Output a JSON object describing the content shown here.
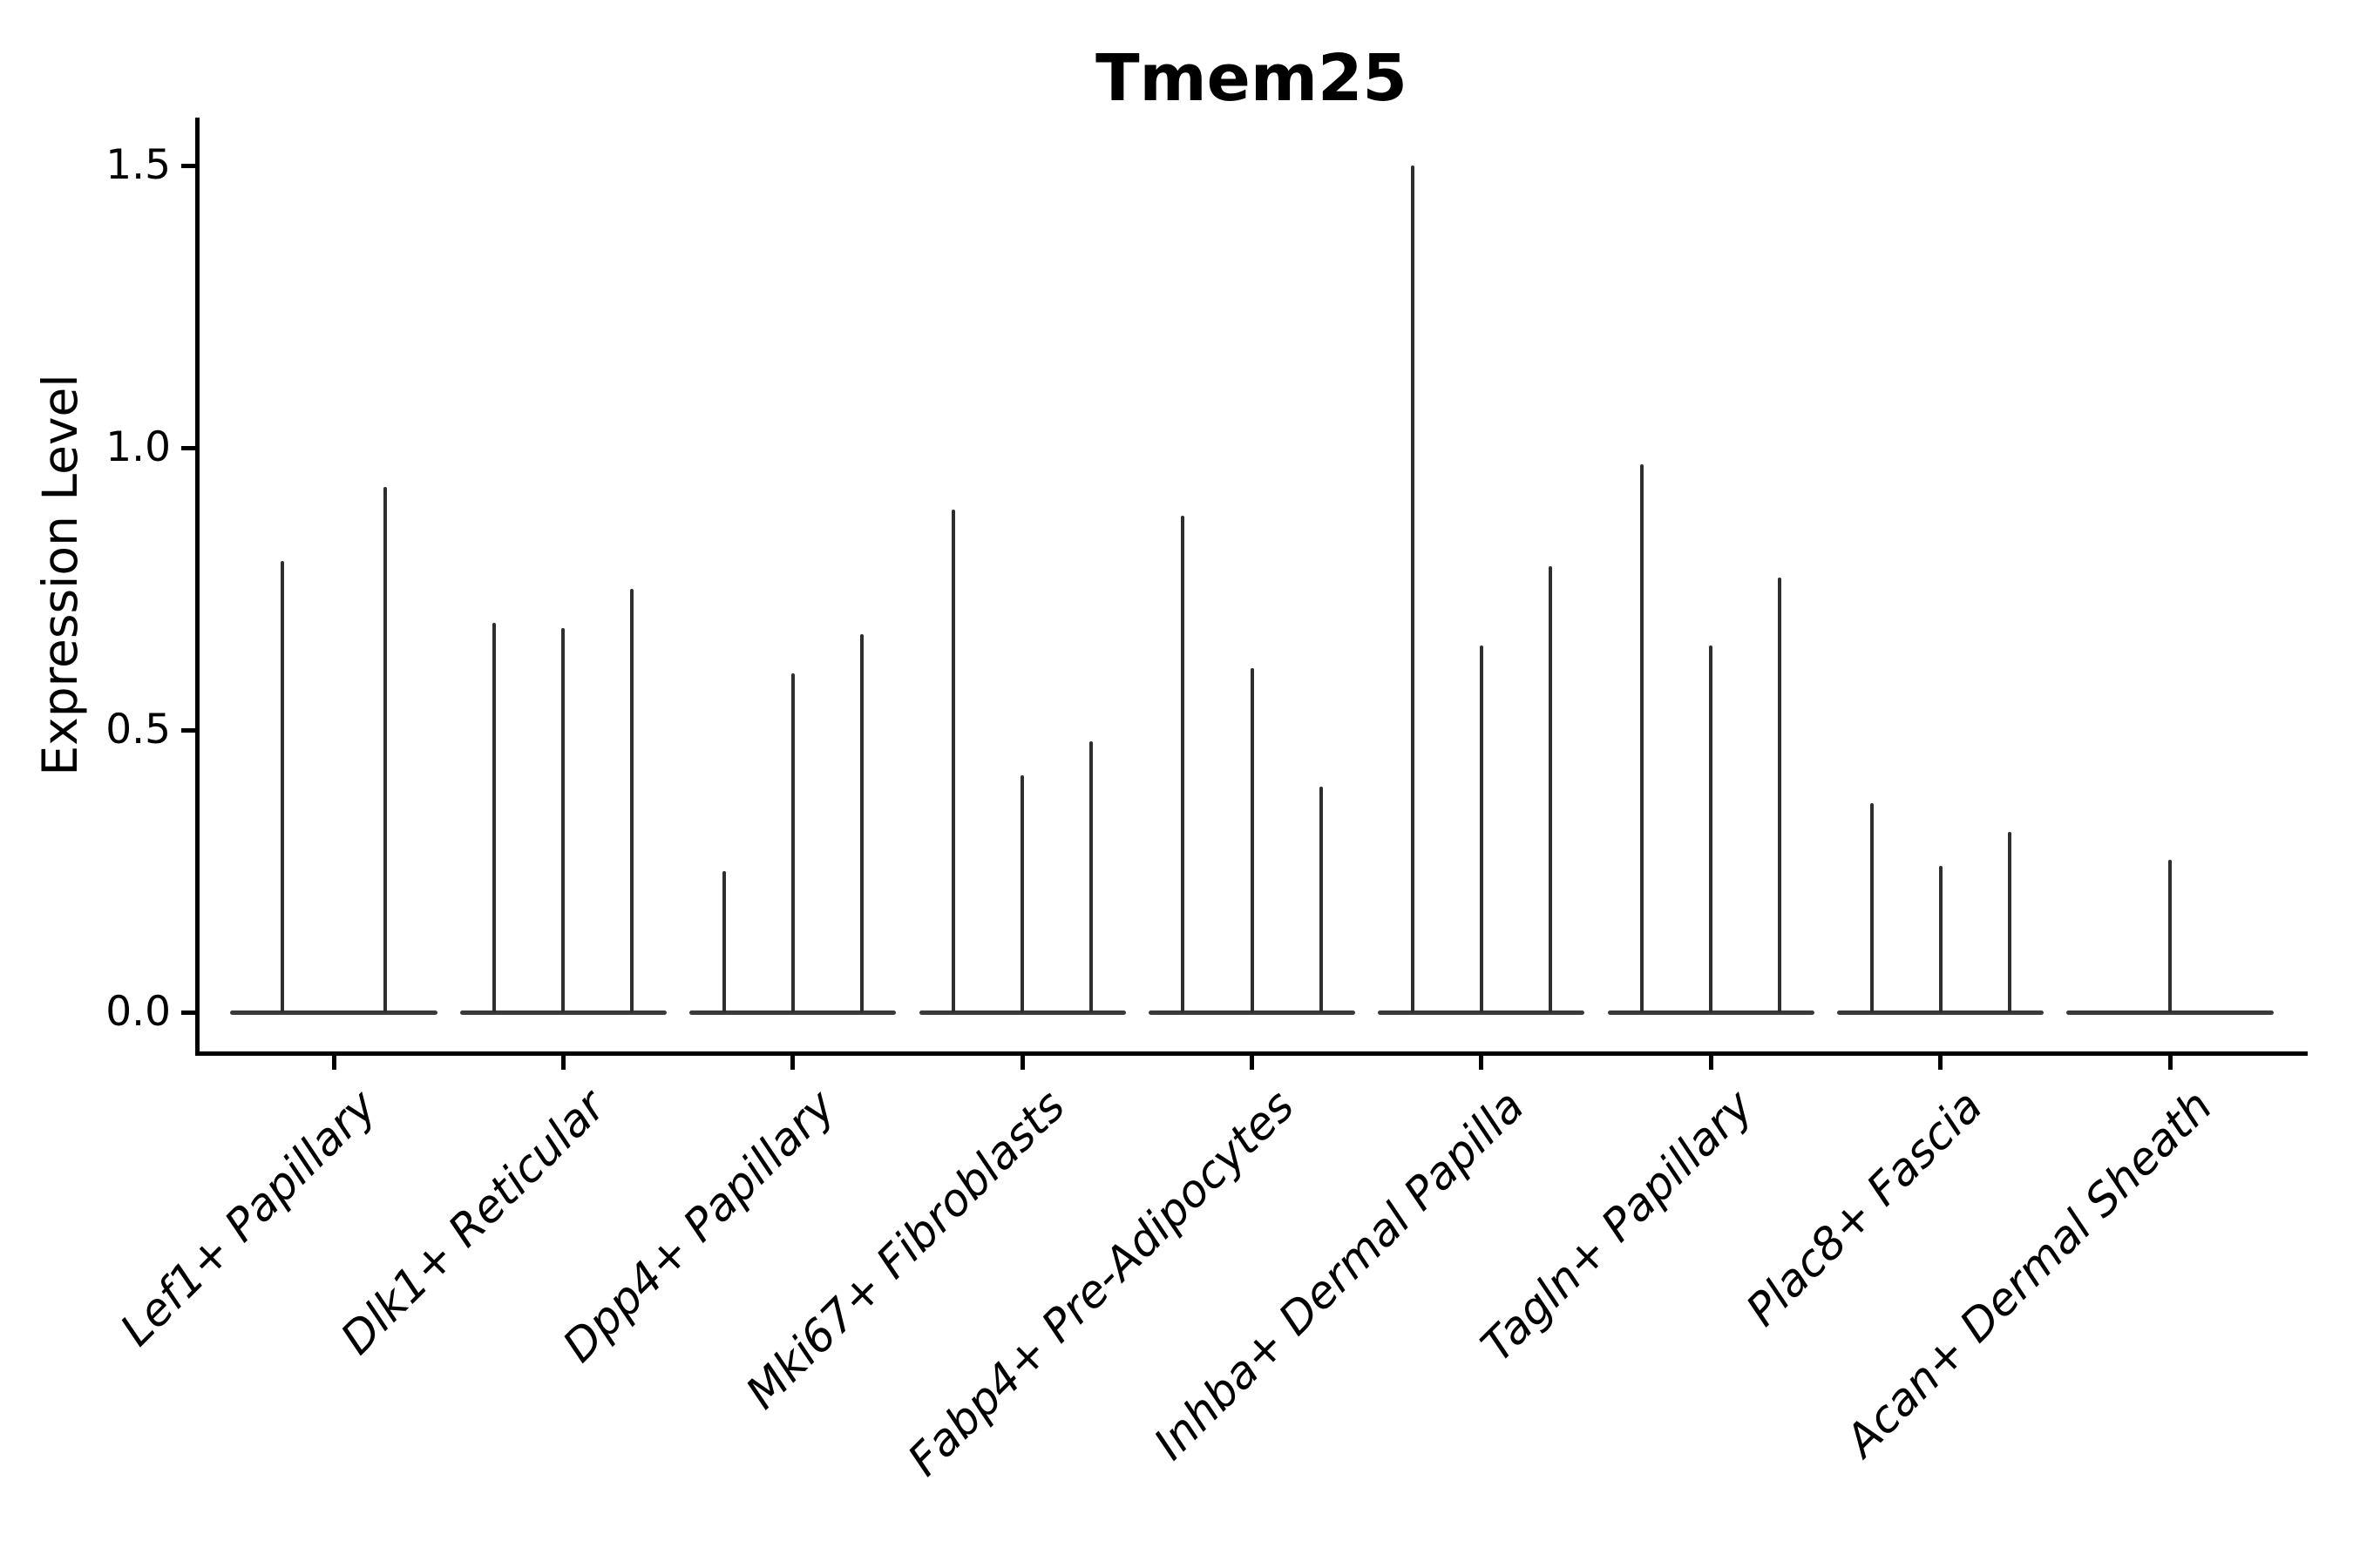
{
  "chart_data": {
    "type": "violin",
    "title": "Tmem25",
    "xlabel": "",
    "ylabel": "Expression Level",
    "yticks": [
      "0.0",
      "0.5",
      "1.0",
      "1.5"
    ],
    "ytick_values": [
      0.0,
      0.5,
      1.0,
      1.5
    ],
    "ylim": [
      -0.08,
      1.59
    ],
    "grid": false,
    "legend": null,
    "categories": [
      "Lef1+ Papillary",
      "Dlk1+ Reticular",
      "Dpp4+ Papillary",
      "Mki67+ Fibroblasts",
      "Fabp4+ Pre-Adipocytes",
      "Inhba+ Dermal Papilla",
      "Tagln+ Papillary",
      "Plac8+ Fascia",
      "Acan+ Dermal Sheath"
    ],
    "groups": [
      {
        "label": "Lef1+ Papillary",
        "violins": [
          {
            "offset": -0.225,
            "peak": 0.8
          },
          {
            "offset": 0.225,
            "peak": 0.93
          }
        ]
      },
      {
        "label": "Dlk1+ Reticular",
        "violins": [
          {
            "offset": -0.3,
            "peak": 0.69
          },
          {
            "offset": 0.0,
            "peak": 0.68
          },
          {
            "offset": 0.3,
            "peak": 0.75
          }
        ]
      },
      {
        "label": "Dpp4+ Papillary",
        "violins": [
          {
            "offset": -0.3,
            "peak": 0.25
          },
          {
            "offset": 0.0,
            "peak": 0.6
          },
          {
            "offset": 0.3,
            "peak": 0.67
          }
        ]
      },
      {
        "label": "Mki67+ Fibroblasts",
        "violins": [
          {
            "offset": -0.3,
            "peak": 0.89
          },
          {
            "offset": 0.0,
            "peak": 0.42
          },
          {
            "offset": 0.3,
            "peak": 0.48
          }
        ]
      },
      {
        "label": "Fabp4+ Pre-Adipocytes",
        "violins": [
          {
            "offset": -0.3,
            "peak": 0.88
          },
          {
            "offset": 0.0,
            "peak": 0.61
          },
          {
            "offset": 0.3,
            "peak": 0.4
          }
        ]
      },
      {
        "label": "Inhba+ Dermal Papilla",
        "violins": [
          {
            "offset": -0.3,
            "peak": 1.5
          },
          {
            "offset": 0.0,
            "peak": 0.65
          },
          {
            "offset": 0.3,
            "peak": 0.79
          }
        ]
      },
      {
        "label": "Tagln+ Papillary",
        "violins": [
          {
            "offset": -0.3,
            "peak": 0.97
          },
          {
            "offset": 0.0,
            "peak": 0.65
          },
          {
            "offset": 0.3,
            "peak": 0.77
          }
        ]
      },
      {
        "label": "Plac8+ Fascia",
        "violins": [
          {
            "offset": -0.3,
            "peak": 0.37
          },
          {
            "offset": 0.0,
            "peak": 0.26
          },
          {
            "offset": 0.3,
            "peak": 0.32
          }
        ]
      },
      {
        "label": "Acan+ Dermal Sheath",
        "violins": [
          {
            "offset": 0.0,
            "peak": 0.27
          }
        ]
      }
    ],
    "violin_base_halfwidth_units": 0.45,
    "colors": {
      "spike": "#2e2e2e",
      "baseline": "#3a3a3a",
      "axis": "#000000",
      "text": "#000000",
      "background": "#ffffff"
    }
  }
}
